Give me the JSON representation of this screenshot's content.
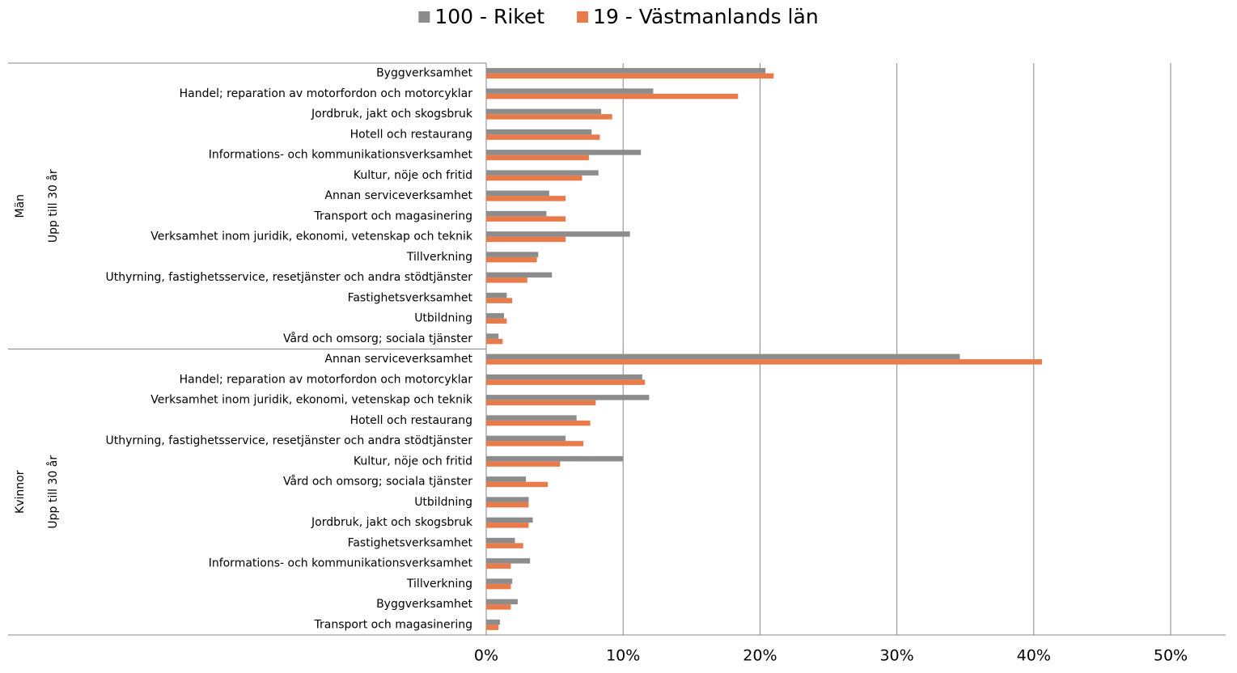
{
  "chart_data": {
    "type": "bar",
    "orientation": "horizontal",
    "groups": [
      {
        "name": "Män",
        "subgroup": "Upp till 30 år",
        "categories": [
          "Byggverksamhet",
          "Handel; reparation av motorfordon och motorcyklar",
          "Jordbruk, jakt och skogsbruk",
          "Hotell och restaurang",
          "Informations- och kommunikationsverksamhet",
          "Kultur, nöje och fritid",
          "Annan serviceverksamhet",
          "Transport och magasinering",
          "Verksamhet inom juridik, ekonomi, vetenskap och teknik",
          "Tillverkning",
          "Uthyrning, fastighetsservice, resetjänster och andra stödtjänster",
          "Fastighetsverksamhet",
          "Utbildning",
          "Vård och omsorg; sociala tjänster"
        ]
      },
      {
        "name": "Kvinnor",
        "subgroup": "Upp till 30 år",
        "categories": [
          "Annan serviceverksamhet",
          "Handel; reparation av motorfordon och motorcyklar",
          "Verksamhet inom juridik, ekonomi, vetenskap och teknik",
          "Hotell och restaurang",
          "Uthyrning, fastighetsservice, resetjänster och andra stödtjänster",
          "Kultur, nöje och fritid",
          "Vård och omsorg; sociala tjänster",
          "Utbildning",
          "Jordbruk, jakt och skogsbruk",
          "Fastighetsverksamhet",
          "Informations- och kommunikationsverksamhet",
          "Tillverkning",
          "Byggverksamhet",
          "Transport och magasinering"
        ]
      }
    ],
    "series": [
      {
        "name": "100 - Riket",
        "color": "#8c8c8c",
        "values": [
          20.4,
          12.2,
          8.4,
          7.7,
          11.3,
          8.2,
          4.6,
          4.4,
          10.5,
          3.8,
          4.8,
          1.5,
          1.3,
          0.9,
          34.6,
          11.4,
          11.9,
          6.6,
          5.8,
          10.0,
          2.9,
          3.1,
          3.4,
          2.1,
          3.2,
          1.9,
          2.3,
          1.0
        ]
      },
      {
        "name": "19 - Västmanlands län",
        "color": "#e97a4a",
        "values": [
          21.0,
          18.4,
          9.2,
          8.3,
          7.5,
          7.0,
          5.8,
          5.8,
          5.8,
          3.7,
          3.0,
          1.9,
          1.5,
          1.2,
          40.6,
          11.6,
          8.0,
          7.6,
          7.1,
          5.4,
          4.5,
          3.1,
          3.1,
          2.7,
          1.8,
          1.8,
          1.8,
          0.9
        ]
      }
    ],
    "xlim": [
      0,
      50
    ],
    "xticks": [
      {
        "value": 0,
        "label": "0%"
      },
      {
        "value": 10,
        "label": "10%"
      },
      {
        "value": 20,
        "label": "20%"
      },
      {
        "value": 30,
        "label": "30%"
      },
      {
        "value": 40,
        "label": "40%"
      },
      {
        "value": 50,
        "label": "50%"
      }
    ],
    "grid": true,
    "legend": "top"
  }
}
